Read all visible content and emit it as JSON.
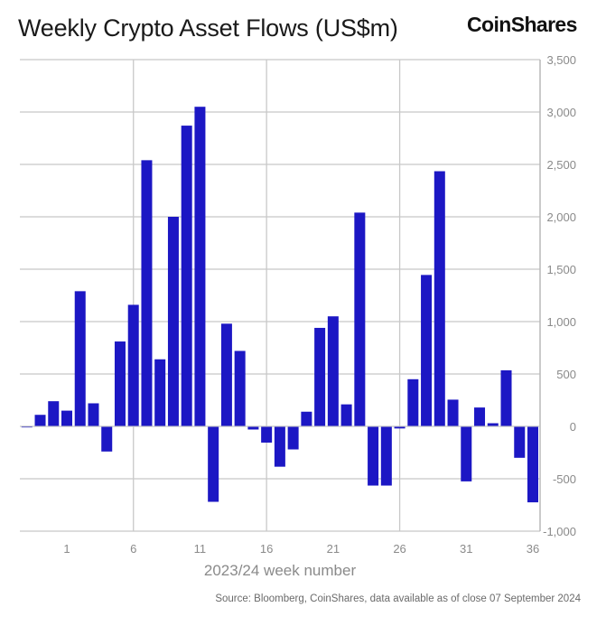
{
  "header": {
    "title": "Weekly Crypto Asset Flows (US$m)",
    "logo": "CoinShares"
  },
  "footer": {
    "source": "Source: Bloomberg, CoinShares, data available as of close 07 September 2024"
  },
  "chart_data": {
    "type": "bar",
    "title": "Weekly Crypto Asset Flows (US$m)",
    "xlabel": "2023/24 week number",
    "ylabel": "",
    "ylim": [
      -1000,
      3500
    ],
    "yticks": [
      -1000,
      -500,
      0,
      500,
      1000,
      1500,
      2000,
      2500,
      3000,
      3500
    ],
    "ytick_labels": [
      "-1,000",
      "-500",
      "0",
      "500",
      "1,000",
      "1,500",
      "2,000",
      "2,500",
      "3,000",
      "3,500"
    ],
    "y_axis_side": "right",
    "xtick_labels": [
      "1",
      "6",
      "11",
      "16",
      "21",
      "26",
      "31",
      "36"
    ],
    "xticks": [
      1,
      6,
      11,
      16,
      21,
      26,
      31,
      36
    ],
    "grid": true,
    "bar_color": "#1c17c4",
    "weeks": [
      -2,
      -1,
      0,
      1,
      2,
      3,
      4,
      5,
      6,
      7,
      8,
      9,
      10,
      11,
      12,
      13,
      14,
      15,
      16,
      17,
      18,
      19,
      20,
      21,
      22,
      23,
      24,
      25,
      26,
      27,
      28,
      29,
      30,
      31,
      32,
      33,
      34,
      35,
      36
    ],
    "values": [
      -10,
      110,
      240,
      150,
      1290,
      220,
      -240,
      810,
      1160,
      2540,
      640,
      2000,
      2870,
      3050,
      -720,
      980,
      720,
      -30,
      -155,
      -385,
      -220,
      140,
      940,
      1050,
      210,
      2040,
      -565,
      -565,
      -20,
      450,
      1445,
      2435,
      255,
      -525,
      180,
      30,
      535,
      -300,
      -725
    ]
  }
}
